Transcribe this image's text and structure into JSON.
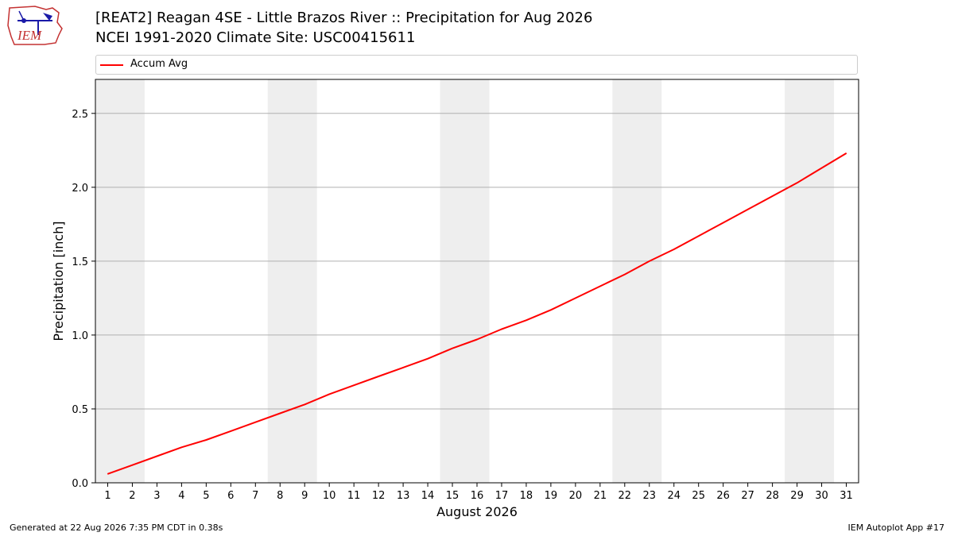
{
  "header": {
    "logo_text": "IEM",
    "title_line1": "[REAT2] Reagan 4SE - Little Brazos River :: Precipitation for Aug 2026",
    "title_line2": "NCEI 1991-2020 Climate Site: USC00415611"
  },
  "legend": {
    "label": "Accum Avg"
  },
  "footer": {
    "generated": "Generated at 22 Aug 2026 7:35 PM CDT in 0.38s",
    "app": "IEM Autoplot App #17"
  },
  "colors": {
    "series": "#ff0000",
    "weekend_band": "#eeeeee",
    "grid": "#b0b0b0"
  },
  "chart_data": {
    "type": "line",
    "xlabel": "August 2026",
    "ylabel": "Precipitation [inch]",
    "xlim": [
      0.5,
      31.5
    ],
    "ylim": [
      0,
      2.73
    ],
    "x_ticks": [
      1,
      2,
      3,
      4,
      5,
      6,
      7,
      8,
      9,
      10,
      11,
      12,
      13,
      14,
      15,
      16,
      17,
      18,
      19,
      20,
      21,
      22,
      23,
      24,
      25,
      26,
      27,
      28,
      29,
      30,
      31
    ],
    "y_ticks": [
      0.0,
      0.5,
      1.0,
      1.5,
      2.0,
      2.5
    ],
    "y_tick_labels": [
      "0.0",
      "0.5",
      "1.0",
      "1.5",
      "2.0",
      "2.5"
    ],
    "grid": "horizontal",
    "legend_position": "top",
    "weekend_bands": [
      [
        0.5,
        2.5
      ],
      [
        7.5,
        9.5
      ],
      [
        14.5,
        16.5
      ],
      [
        21.5,
        23.5
      ],
      [
        28.5,
        30.5
      ]
    ],
    "series": [
      {
        "name": "Accum Avg",
        "x": [
          1,
          2,
          3,
          4,
          5,
          6,
          7,
          8,
          9,
          10,
          11,
          12,
          13,
          14,
          15,
          16,
          17,
          18,
          19,
          20,
          21,
          22,
          23,
          24,
          25,
          26,
          27,
          28,
          29,
          30,
          31
        ],
        "values": [
          0.06,
          0.12,
          0.18,
          0.24,
          0.29,
          0.35,
          0.41,
          0.47,
          0.53,
          0.6,
          0.66,
          0.72,
          0.78,
          0.84,
          0.91,
          0.97,
          1.04,
          1.1,
          1.17,
          1.25,
          1.33,
          1.41,
          1.5,
          1.58,
          1.67,
          1.76,
          1.85,
          1.94,
          2.03,
          2.13,
          2.23
        ]
      }
    ]
  }
}
